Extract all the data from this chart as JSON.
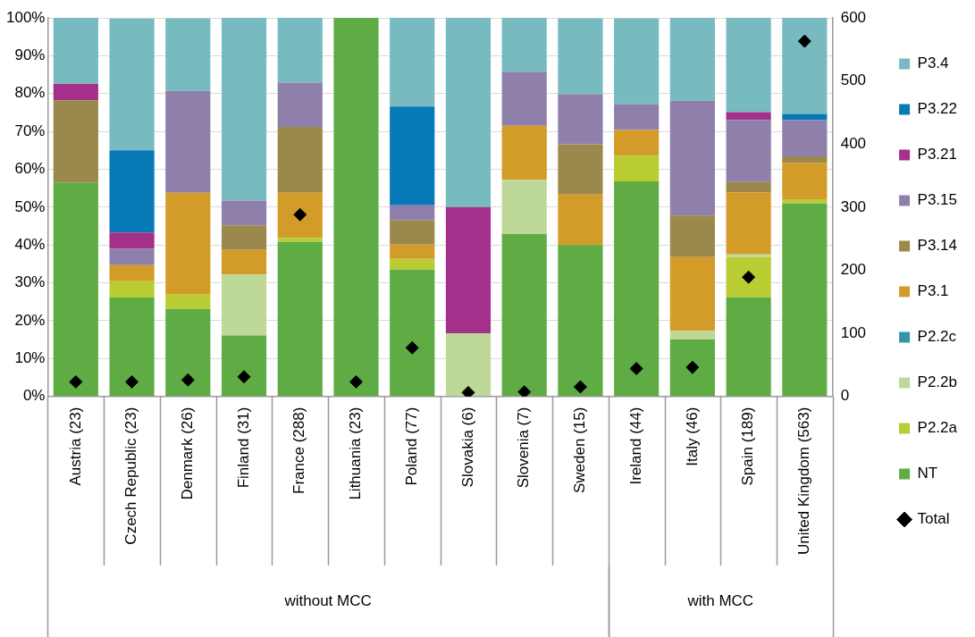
{
  "chart_data": {
    "type": "bar",
    "stacked": true,
    "categories": [
      "Austria (23)",
      "Czech Republic (23)",
      "Denmark (26)",
      "Finland (31)",
      "France (288)",
      "Lithuania (23)",
      "Poland (77)",
      "Slovakia (6)",
      "Slovenia (7)",
      "Sweden (15)",
      "Ireland (44)",
      "Italy (46)",
      "Spain (189)",
      "United Kingdom (563)"
    ],
    "series": [
      {
        "name": "NT",
        "color": "#60ac44",
        "values": [
          56.5,
          26.1,
          23.1,
          16.1,
          40.8,
          100,
          33.5,
          0,
          42.9,
          40,
          56.8,
          15.0,
          26.2,
          51.0
        ]
      },
      {
        "name": "P2.2a",
        "color": "#b9cd32",
        "values": [
          0,
          4.3,
          3.8,
          0,
          1.1,
          0,
          2.8,
          0,
          0,
          0,
          6.8,
          0,
          10.6,
          1.1
        ]
      },
      {
        "name": "P2.2b",
        "color": "#bdd897",
        "values": [
          0,
          0,
          0,
          16.1,
          0,
          0,
          0,
          16.7,
          14.3,
          0,
          0,
          2.3,
          0.7,
          0
        ]
      },
      {
        "name": "P2.2c",
        "color": "#3595ad",
        "values": [
          0,
          0,
          0,
          0,
          0,
          0,
          0,
          0,
          0,
          0,
          0,
          0,
          0,
          0
        ]
      },
      {
        "name": "P3.1",
        "color": "#d39c29",
        "values": [
          0,
          4.3,
          26.9,
          6.5,
          11.9,
          0,
          3.8,
          0,
          14.3,
          13.3,
          6.8,
          19.5,
          16.4,
          9.6
        ]
      },
      {
        "name": "P3.14",
        "color": "#9b884c",
        "values": [
          21.7,
          0,
          0,
          6.5,
          17.4,
          0,
          6.5,
          0,
          0,
          13.3,
          0,
          11.0,
          2.7,
          1.7
        ]
      },
      {
        "name": "P3.15",
        "color": "#8e80aa",
        "values": [
          0,
          4.3,
          26.9,
          6.5,
          11.7,
          0,
          3.9,
          0,
          14.3,
          13.3,
          6.8,
          30.3,
          16.4,
          9.6
        ]
      },
      {
        "name": "P3.21",
        "color": "#a3308a",
        "values": [
          4.4,
          4.3,
          0,
          0,
          0,
          0,
          0,
          33.3,
          0,
          0,
          0,
          0,
          2.1,
          0
        ]
      },
      {
        "name": "P3.22",
        "color": "#0779b7",
        "values": [
          0,
          21.7,
          0,
          0,
          0,
          0,
          26.1,
          0,
          0,
          0,
          0,
          0,
          0,
          1.6
        ]
      },
      {
        "name": "P3.4",
        "color": "#77bbc0",
        "values": [
          17.4,
          34.8,
          19.2,
          48.3,
          17.1,
          0,
          23.4,
          50,
          14.2,
          20,
          22.7,
          21.9,
          24.9,
          25.4
        ]
      },
      {
        "name": "Total",
        "type": "scatter",
        "axis": "y2",
        "color": "#000000",
        "marker": "diamond",
        "values": [
          23,
          23,
          26,
          31,
          288,
          23,
          77,
          6,
          7,
          15,
          44,
          46,
          189,
          563
        ]
      }
    ],
    "ylim": [
      0,
      100
    ],
    "yticks": [
      {
        "value": 0,
        "label": "0%"
      },
      {
        "value": 10,
        "label": "10%"
      },
      {
        "value": 20,
        "label": "20%"
      },
      {
        "value": 30,
        "label": "30%"
      },
      {
        "value": 40,
        "label": "40%"
      },
      {
        "value": 50,
        "label": "50%"
      },
      {
        "value": 60,
        "label": "60%"
      },
      {
        "value": 70,
        "label": "70%"
      },
      {
        "value": 80,
        "label": "80%"
      },
      {
        "value": 90,
        "label": "90%"
      },
      {
        "value": 100,
        "label": "100%"
      }
    ],
    "y2lim": [
      0,
      600
    ],
    "y2ticks": [
      0,
      100,
      200,
      300,
      400,
      500,
      600
    ],
    "annotations": [
      "without MCC",
      "with MCC"
    ],
    "grid": "y",
    "legend": "right"
  }
}
